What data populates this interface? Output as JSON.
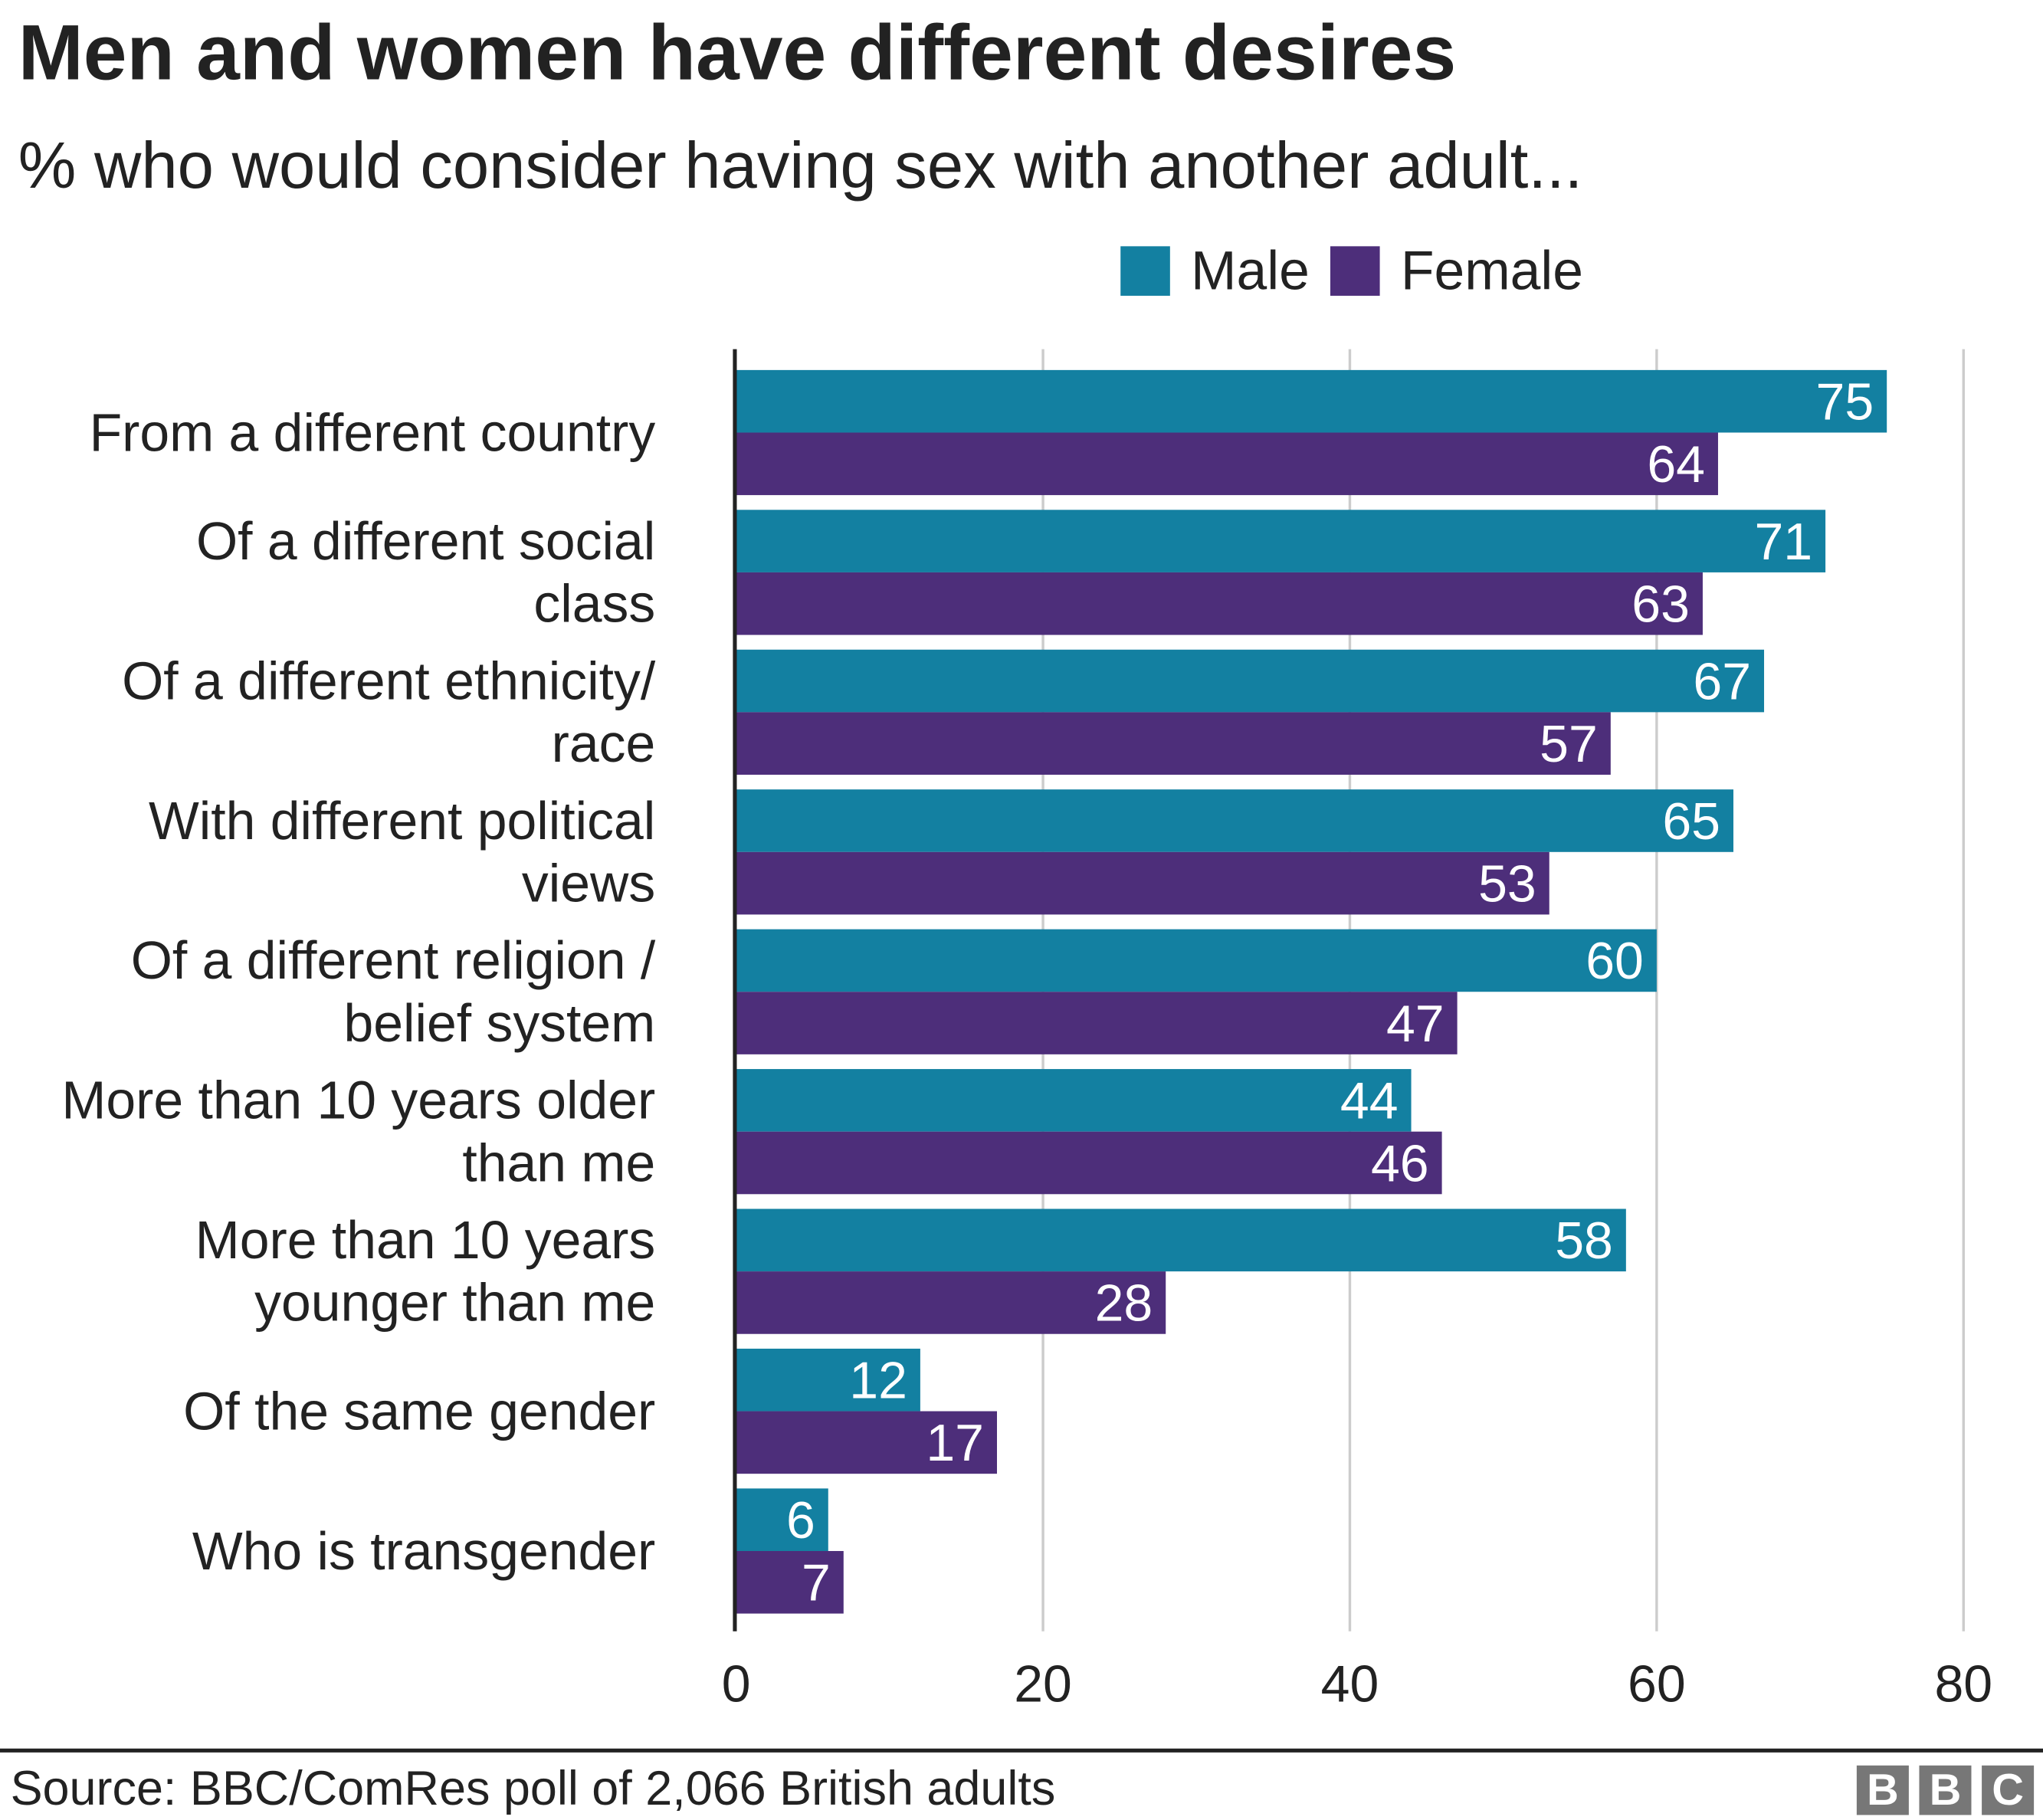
{
  "chart_data": {
    "type": "bar",
    "orientation": "horizontal",
    "title": "Men and women have different desires",
    "subtitle": "% who would consider having sex with another adult...",
    "categories": [
      [
        "From a different country"
      ],
      [
        "Of a different social",
        "class"
      ],
      [
        "Of a different ethnicity/",
        "race"
      ],
      [
        "With different political",
        "views"
      ],
      [
        "Of a different religion /",
        "belief system"
      ],
      [
        "More than 10 years older",
        "than me"
      ],
      [
        "More than 10 years",
        "younger than me"
      ],
      [
        "Of the same gender"
      ],
      [
        "Who is transgender"
      ]
    ],
    "series": [
      {
        "name": "Male",
        "color": "#1380A1",
        "values": [
          75,
          71,
          67,
          65,
          60,
          44,
          58,
          12,
          6
        ]
      },
      {
        "name": "Female",
        "color": "#4D2E7A",
        "values": [
          64,
          63,
          57,
          53,
          47,
          46,
          28,
          17,
          7
        ]
      }
    ],
    "xlim": [
      0,
      80
    ],
    "xticks": [
      "0",
      "20",
      "40",
      "60",
      "80"
    ],
    "grid": true,
    "legend_position": "top-right",
    "data_labels": true
  },
  "footer": {
    "source": "Source: BBC/ComRes poll of 2,066 British adults",
    "logo": [
      "B",
      "B",
      "C"
    ]
  }
}
